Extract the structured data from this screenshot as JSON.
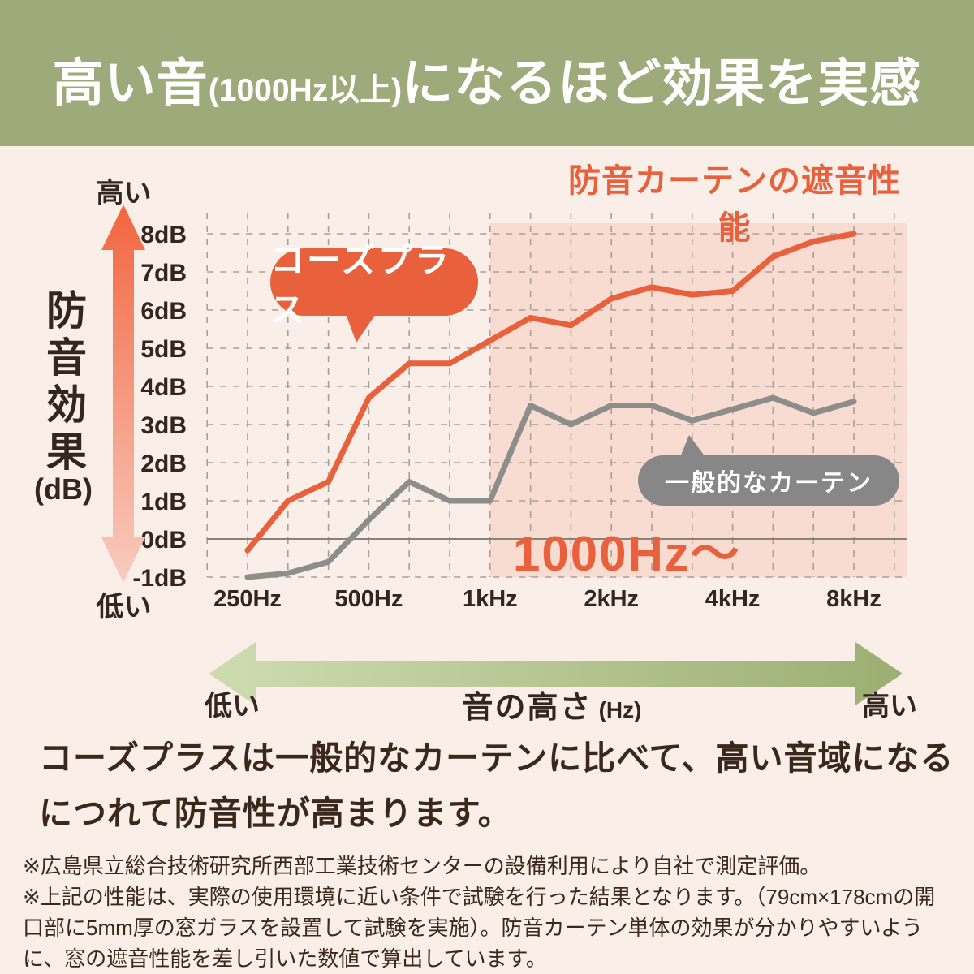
{
  "banner": {
    "part1": "高い音",
    "part2": "(1000Hz以上)",
    "part3": "になるほど効果を実感"
  },
  "chart": {
    "title": "防音カーテンの遮音性能",
    "y_axis_label": "防音効果",
    "y_axis_unit": "(dB)",
    "y_high_label": "高い",
    "y_low_label": "低い"
  },
  "chart_data": {
    "type": "line",
    "title": "防音カーテンの遮音性能",
    "xlabel": "音の高さ (Hz)",
    "ylabel": "防音効果 (dB)",
    "x": [
      250,
      315,
      400,
      500,
      630,
      800,
      1000,
      1250,
      1600,
      2000,
      2500,
      3150,
      4000,
      5000,
      6300,
      8000
    ],
    "x_scale": "log (1/3-octave bands)",
    "x_tick_labels": [
      {
        "label": "250Hz",
        "index": 0
      },
      {
        "label": "500Hz",
        "index": 3
      },
      {
        "label": "1kHz",
        "index": 6
      },
      {
        "label": "2kHz",
        "index": 9
      },
      {
        "label": "4kHz",
        "index": 12
      },
      {
        "label": "8kHz",
        "index": 15
      }
    ],
    "y_ticks": [
      {
        "label": "8dB",
        "value": 8
      },
      {
        "label": "7dB",
        "value": 7
      },
      {
        "label": "6dB",
        "value": 6
      },
      {
        "label": "5dB",
        "value": 5
      },
      {
        "label": "4dB",
        "value": 4
      },
      {
        "label": "3dB",
        "value": 3
      },
      {
        "label": "2dB",
        "value": 2
      },
      {
        "label": "1dB",
        "value": 1
      },
      {
        "label": "0dB",
        "value": 0
      },
      {
        "label": "-1dB",
        "value": -1
      }
    ],
    "ylim": [
      -1,
      8
    ],
    "grid": true,
    "series": [
      {
        "name": "コーズプラス",
        "color": "#E8603C",
        "values": [
          -0.3,
          1.0,
          1.5,
          3.7,
          4.6,
          4.6,
          5.2,
          5.8,
          5.6,
          6.3,
          6.6,
          6.4,
          6.5,
          7.4,
          7.8,
          8.0
        ]
      },
      {
        "name": "一般的なカーテン",
        "color": "#8D8D8B",
        "values": [
          -1.0,
          -0.9,
          -0.6,
          0.5,
          1.5,
          1.0,
          1.0,
          3.5,
          3.0,
          3.5,
          3.5,
          3.1,
          3.4,
          3.7,
          3.3,
          3.6
        ]
      }
    ],
    "highlight_region": {
      "from_hz": 1000,
      "label": "1000Hz〜"
    }
  },
  "bottom_axis": {
    "low": "低い",
    "label": "音の高さ",
    "unit": "(Hz)",
    "high": "高い"
  },
  "description": {
    "lines": [
      "コーズプラスは一般的なカーテンに比べて、高い音域になる",
      "につれて防音性が高まります。"
    ]
  },
  "footnotes": [
    "※広島県立総合技術研究所西部工業技術センターの設備利用により自社で測定評価。",
    "※上記の性能は、実際の使用環境に近い条件で試験を行った結果となります。（79cm×178cmの開口部に5mm厚の窓ガラスを設置して試験を実施）。防音カーテン単体の効果が分かりやすいように、窓の遮音性能を差し引いた数値で算出しています。"
  ],
  "colors": {
    "banner_bg": "#9FAA7B",
    "page_bg": "#F9EFE8",
    "accent_orange": "#E8603C",
    "pink_region": "#F8DCD2",
    "gray_line": "#8D8D8B",
    "gray_bubble": "#878787",
    "grid_line": "#A8A096",
    "zero_line": "#8A8178",
    "heading_text": "#33251F",
    "body_text": "#3A281C",
    "red_arrow_top": "#F2653F",
    "red_arrow_bottom": "#F9CCBF",
    "green_arrow_light": "#CEDCB0",
    "green_arrow_dark": "#9BAF72"
  }
}
